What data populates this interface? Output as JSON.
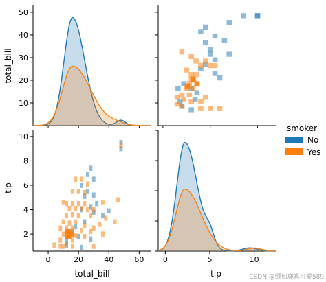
{
  "chart_data": {
    "type": "pairplot",
    "variables": [
      "total_bill",
      "tip"
    ],
    "hue": {
      "title": "smoker",
      "levels": [
        "No",
        "Yes"
      ],
      "colors": {
        "No": "#1f77b4",
        "Yes": "#ff7f0e"
      }
    },
    "panels": [
      {
        "id": "total_bill-kde",
        "kind": "kde",
        "x": "total_bill",
        "ylabel": "total_bill",
        "yticks": [
          10,
          20,
          30,
          40,
          50
        ],
        "ylim": [
          0,
          53
        ],
        "xlim": [
          -10,
          68
        ],
        "density_peak_x": 16,
        "density_peak_relative": {
          "No": 1.0,
          "Yes": 0.55
        }
      },
      {
        "id": "total_bill-vs-tip-hist",
        "kind": "hist2d",
        "x": "tip",
        "y": "total_bill",
        "xlim": [
          -0.5,
          12
        ],
        "ylim": [
          0,
          53
        ],
        "cells_no": [
          [
            8.5,
            48.5
          ],
          [
            10,
            48.5
          ],
          [
            7,
            45.5
          ],
          [
            10,
            48.5
          ],
          [
            4.5,
            43.5
          ],
          [
            4,
            41.5
          ],
          [
            5.5,
            39.5
          ],
          [
            6.5,
            37.5
          ],
          [
            4.5,
            36.5
          ],
          [
            5,
            33.5
          ],
          [
            5,
            31.5
          ],
          [
            7,
            31.5
          ],
          [
            5.5,
            29
          ],
          [
            4.5,
            27
          ],
          [
            4,
            25
          ],
          [
            5.5,
            23
          ],
          [
            6,
            21
          ],
          [
            2.2,
            18.5
          ],
          [
            3,
            16.5
          ],
          [
            1.6,
            16.5
          ],
          [
            3.6,
            14.5
          ],
          [
            3.4,
            11.5
          ],
          [
            1.8,
            10.5
          ],
          [
            2,
            8.5
          ],
          [
            3,
            7
          ]
        ],
        "cells_yes": [
          [
            2,
            32.5
          ],
          [
            3,
            30.5
          ],
          [
            3.5,
            28.5
          ],
          [
            4,
            26.5
          ],
          [
            4.5,
            28.5
          ],
          [
            5,
            26.5
          ],
          [
            5.5,
            26.5
          ],
          [
            2.5,
            24.5
          ],
          [
            3,
            22.5
          ],
          [
            3.5,
            22.5
          ],
          [
            3,
            20.5
          ],
          [
            2.8,
            18.5
          ],
          [
            2.5,
            16.5
          ],
          [
            3.2,
            16.5
          ],
          [
            2.8,
            13.5
          ],
          [
            2,
            13.5
          ],
          [
            2.2,
            11.5
          ],
          [
            1.5,
            9.5
          ],
          [
            2,
            8.5
          ],
          [
            3,
            10.5
          ],
          [
            4,
            10.5
          ],
          [
            4.5,
            12.5
          ],
          [
            5,
            7.5
          ],
          [
            6,
            7.5
          ],
          [
            4,
            7.5
          ],
          [
            1.5,
            12.5
          ]
        ],
        "cells_dark": [
          [
            3.2,
            20.5
          ],
          [
            3.6,
            18.5
          ],
          [
            2.6,
            17.5
          ]
        ]
      },
      {
        "id": "tip-vs-total_bill-hist",
        "kind": "hist2d",
        "x": "total_bill",
        "y": "tip",
        "xlim": [
          -10,
          68
        ],
        "ylim": [
          0.6,
          10.5
        ],
        "ylabel": "tip",
        "xlabel": "total_bill",
        "yticks": [
          2,
          4,
          6,
          8,
          10
        ],
        "xticks": [
          0,
          20,
          40,
          60
        ],
        "cells_no": [
          [
            48,
            9.5
          ],
          [
            48,
            9.0
          ],
          [
            28,
            7.4
          ],
          [
            26,
            6.9
          ],
          [
            30,
            6.5
          ],
          [
            22,
            6.0
          ],
          [
            26,
            5.5
          ],
          [
            30,
            5.2
          ],
          [
            24,
            5.1
          ],
          [
            32,
            4.5
          ],
          [
            28,
            4.2
          ],
          [
            30,
            3.8
          ],
          [
            40,
            3.9
          ],
          [
            36,
            3.5
          ],
          [
            22,
            4.0
          ],
          [
            24,
            3.0
          ],
          [
            18,
            2.6
          ],
          [
            16,
            2.2
          ],
          [
            14,
            2.0
          ],
          [
            20,
            1.8
          ],
          [
            12,
            1.5
          ],
          [
            28,
            1.6
          ],
          [
            12,
            1.1
          ],
          [
            22,
            0.9
          ]
        ],
        "cells_yes": [
          [
            48,
            9.3
          ],
          [
            18,
            6.5
          ],
          [
            22,
            6.5
          ],
          [
            26,
            6.1
          ],
          [
            16,
            5.5
          ],
          [
            20,
            5.5
          ],
          [
            24,
            5.4
          ],
          [
            10,
            4.6
          ],
          [
            12,
            4.5
          ],
          [
            16,
            4.5
          ],
          [
            20,
            4.5
          ],
          [
            24,
            4.5
          ],
          [
            14,
            4.1
          ],
          [
            18,
            4.1
          ],
          [
            22,
            4.1
          ],
          [
            26,
            4.0
          ],
          [
            30,
            4.0
          ],
          [
            36,
            4.6
          ],
          [
            46,
            4.8
          ],
          [
            12,
            3.5
          ],
          [
            16,
            3.6
          ],
          [
            20,
            3.5
          ],
          [
            28,
            3.5
          ],
          [
            38,
            3.3
          ],
          [
            44,
            3.0
          ],
          [
            10,
            3.0
          ],
          [
            14,
            2.9
          ],
          [
            18,
            3.0
          ],
          [
            24,
            2.7
          ],
          [
            30,
            2.5
          ],
          [
            34,
            2.8
          ],
          [
            8,
            2.5
          ],
          [
            12,
            2.5
          ],
          [
            16,
            2.5
          ],
          [
            22,
            2.3
          ],
          [
            28,
            2.2
          ],
          [
            36,
            2.0
          ],
          [
            10,
            2.0
          ],
          [
            18,
            1.9
          ],
          [
            24,
            1.8
          ],
          [
            8,
            1.5
          ],
          [
            12,
            1.2
          ],
          [
            16,
            1.5
          ],
          [
            4,
            1.1
          ],
          [
            8,
            1.0
          ],
          [
            10,
            1.0
          ],
          [
            16,
            1.0
          ],
          [
            30,
            1.0
          ]
        ],
        "cells_dark": [
          [
            12,
            2.2
          ],
          [
            14,
            2.2
          ],
          [
            12,
            1.8
          ],
          [
            14,
            1.8
          ],
          [
            16,
            2.0
          ]
        ]
      },
      {
        "id": "tip-kde",
        "kind": "kde",
        "x": "tip",
        "xlabel": "tip",
        "xticks": [
          0,
          5,
          10
        ],
        "xlim": [
          -0.8,
          12.5
        ],
        "density_peak_x": 2.2,
        "density_peak_relative": {
          "No": 1.0,
          "Yes": 0.57
        }
      }
    ],
    "legend": {
      "title": "smoker",
      "entries": [
        "No",
        "Yes"
      ],
      "position": "right"
    }
  },
  "labels": {
    "y_total_bill": "total_bill",
    "y_tip": "tip",
    "x_total_bill": "total_bill",
    "x_tip": "tip",
    "legend_title": "smoker",
    "legend_no": "No",
    "legend_yes": "Yes"
  },
  "watermark": "CSDN @缅甸鹿真可爱589"
}
